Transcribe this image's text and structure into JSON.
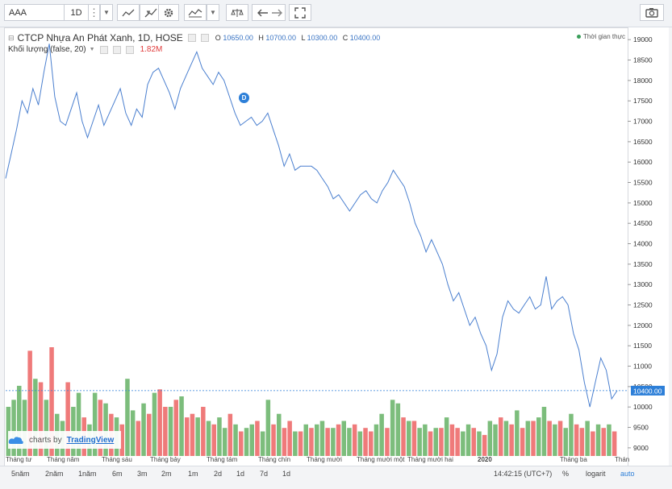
{
  "toolbar": {
    "symbol": "AAA",
    "interval": "1D",
    "more": "⋮",
    "camera_icon": "camera-icon"
  },
  "legend": {
    "title": "CTCP Nhựa An Phát Xanh, 1D, HOSE",
    "o_label": "O",
    "o_value": "10650.00",
    "h_label": "H",
    "h_value": "10700.00",
    "l_label": "L",
    "l_value": "10300.00",
    "c_label": "C",
    "c_value": "10400.00",
    "volume_label": "Khối lượng (false, 20)",
    "volume_value": "1.82M",
    "realtime": "Thời gian thực"
  },
  "badge": "D",
  "logo": {
    "prefix": "charts by",
    "brand": "TradingView"
  },
  "bottom": {
    "ranges": [
      "5năm",
      "2năm",
      "1năm",
      "6m",
      "3m",
      "2m",
      "1m",
      "2d",
      "1d",
      "7d",
      "1d"
    ],
    "time": "14:42:15 (UTC+7)",
    "percent": "%",
    "log": "logarit",
    "auto": "auto"
  },
  "colors": {
    "line": "#4a7fcf",
    "up": "#7cbd7c",
    "down": "#ef7a7a",
    "price_tag": "#2d7fd8"
  },
  "chart_data": {
    "type": "line",
    "title": "CTCP Nhựa An Phát Xanh, 1D, HOSE",
    "price_label": "10400.00",
    "ylim": [
      8800,
      19300
    ],
    "yticks": [
      9000,
      9500,
      10000,
      10500,
      11000,
      11500,
      12000,
      12500,
      13000,
      13500,
      14000,
      14500,
      15000,
      15500,
      16000,
      16500,
      17000,
      17500,
      18000,
      18500,
      19000
    ],
    "month_labels": [
      "Tháng tư",
      "Tháng năm",
      "Tháng sáu",
      "Tháng bảy",
      "Tháng tám",
      "Tháng chín",
      "Tháng mười",
      "Tháng mười một",
      "Tháng mười hai",
      "2020",
      "Tháng ba",
      "Thán"
    ],
    "price": [
      15600,
      16200,
      16800,
      17500,
      17200,
      17800,
      17400,
      18200,
      18900,
      17600,
      17000,
      16900,
      17300,
      17700,
      17000,
      16600,
      17000,
      17400,
      16900,
      17200,
      17500,
      17800,
      17200,
      16900,
      17300,
      17100,
      17900,
      18200,
      18300,
      18000,
      17700,
      17300,
      17800,
      18100,
      18400,
      18700,
      18300,
      18100,
      17900,
      18200,
      18000,
      17600,
      17200,
      16900,
      17000,
      17100,
      16900,
      17000,
      17200,
      16800,
      16400,
      15900,
      16200,
      15800,
      15900,
      15900,
      15900,
      15800,
      15600,
      15400,
      15100,
      15200,
      15000,
      14800,
      15000,
      15200,
      15300,
      15100,
      15000,
      15300,
      15500,
      15800,
      15600,
      15400,
      15000,
      14500,
      14200,
      13800,
      14100,
      13800,
      13500,
      13000,
      12600,
      12800,
      12400,
      12000,
      12200,
      11800,
      11500,
      10900,
      11300,
      12200,
      12600,
      12400,
      12300,
      12500,
      12700,
      12400,
      12500,
      13200,
      12400,
      12600,
      12700,
      12500,
      11800,
      11400,
      10600,
      10000,
      10600,
      11200,
      10900,
      10200,
      10400
    ],
    "volume_up": [
      true,
      true,
      true,
      true,
      false,
      true,
      false,
      true,
      false,
      true,
      true,
      false,
      true,
      true,
      false,
      true,
      true,
      false,
      true,
      false,
      true,
      false,
      true,
      true,
      false,
      true,
      false,
      true,
      false,
      false,
      true,
      false,
      true,
      false,
      false,
      true,
      false,
      true,
      false,
      true,
      true,
      false,
      true,
      false,
      true,
      true,
      false,
      true,
      true,
      false,
      true,
      false,
      false,
      true,
      false,
      true,
      false,
      true,
      true,
      false,
      true,
      false,
      true,
      true,
      false,
      true,
      false,
      false,
      true,
      true,
      false,
      true,
      true,
      false,
      true,
      false,
      true,
      true,
      false,
      true,
      false,
      true,
      false,
      false,
      true,
      true,
      false,
      true,
      false,
      true,
      true,
      false,
      true,
      false,
      true,
      false,
      true,
      false,
      true,
      true,
      false,
      true,
      false,
      true,
      true,
      false,
      false,
      true,
      false,
      true,
      false,
      true,
      false
    ],
    "volume": [
      1.4,
      1.6,
      2.0,
      1.6,
      3.0,
      2.2,
      2.1,
      1.6,
      3.1,
      1.2,
      1.0,
      2.1,
      1.4,
      1.8,
      1.1,
      0.9,
      1.8,
      1.6,
      1.5,
      1.2,
      1.1,
      0.9,
      2.2,
      1.3,
      1.0,
      1.5,
      1.2,
      1.8,
      1.9,
      1.4,
      1.4,
      1.6,
      1.7,
      1.1,
      1.2,
      1.1,
      1.4,
      1.0,
      0.9,
      1.1,
      0.8,
      1.2,
      0.9,
      0.7,
      0.8,
      0.9,
      1.0,
      0.7,
      1.6,
      0.9,
      1.2,
      0.8,
      1.0,
      0.7,
      0.7,
      0.9,
      0.8,
      0.9,
      1.0,
      0.8,
      0.8,
      0.9,
      1.0,
      0.8,
      0.9,
      0.7,
      0.8,
      0.7,
      0.9,
      1.2,
      0.8,
      1.6,
      1.5,
      1.1,
      1.0,
      1.0,
      0.8,
      0.9,
      0.7,
      0.8,
      0.8,
      1.1,
      0.9,
      0.8,
      0.7,
      0.9,
      0.8,
      0.7,
      0.6,
      1.0,
      0.9,
      1.1,
      1.0,
      0.9,
      1.3,
      0.8,
      1.0,
      1.0,
      1.1,
      1.4,
      1.0,
      0.9,
      1.0,
      0.8,
      1.2,
      0.9,
      0.8,
      1.0,
      0.7,
      0.9,
      0.8,
      0.9,
      0.7
    ]
  }
}
